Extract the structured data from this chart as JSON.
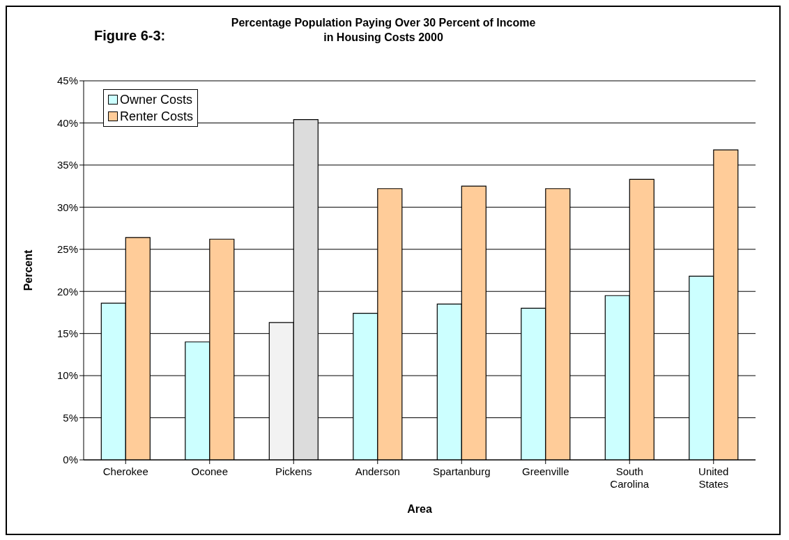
{
  "chart_data": {
    "type": "bar",
    "title": "Percentage Population Paying Over 30 Percent of Income in Housing Costs 2000",
    "annotations": [
      "Figure 6-3:"
    ],
    "xlabel": "Area",
    "ylabel": "Percent",
    "categories": [
      "Cherokee",
      "Oconee",
      "Pickens",
      "Anderson",
      "Spartanburg",
      "Greenville",
      "South Carolina",
      "United States"
    ],
    "series": [
      {
        "name": "Owner Costs",
        "color": "#ccffff",
        "colors": [
          "#ccffff",
          "#ccffff",
          "#f2f2f2",
          "#ccffff",
          "#ccffff",
          "#ccffff",
          "#ccffff",
          "#ccffff"
        ],
        "values": [
          18.6,
          14.0,
          16.3,
          17.4,
          18.5,
          18.0,
          19.5,
          21.8
        ]
      },
      {
        "name": "Renter Costs",
        "color": "#ffcc99",
        "colors": [
          "#ffcc99",
          "#ffcc99",
          "#dcdcdc",
          "#ffcc99",
          "#ffcc99",
          "#ffcc99",
          "#ffcc99",
          "#ffcc99"
        ],
        "values": [
          26.4,
          26.2,
          40.4,
          32.2,
          32.5,
          32.2,
          33.3,
          36.8
        ]
      }
    ],
    "ylim": [
      0,
      45
    ],
    "yticks": [
      {
        "value": 0,
        "label": "0%"
      },
      {
        "value": 5,
        "label": "5%"
      },
      {
        "value": 10,
        "label": "10%"
      },
      {
        "value": 15,
        "label": "15%"
      },
      {
        "value": 20,
        "label": "20%"
      },
      {
        "value": 25,
        "label": "25%"
      },
      {
        "value": 30,
        "label": "30%"
      },
      {
        "value": 35,
        "label": "35%"
      },
      {
        "value": 40,
        "label": "40%"
      },
      {
        "value": 45,
        "label": "45%"
      }
    ],
    "grid": "y",
    "legend": "top left"
  }
}
